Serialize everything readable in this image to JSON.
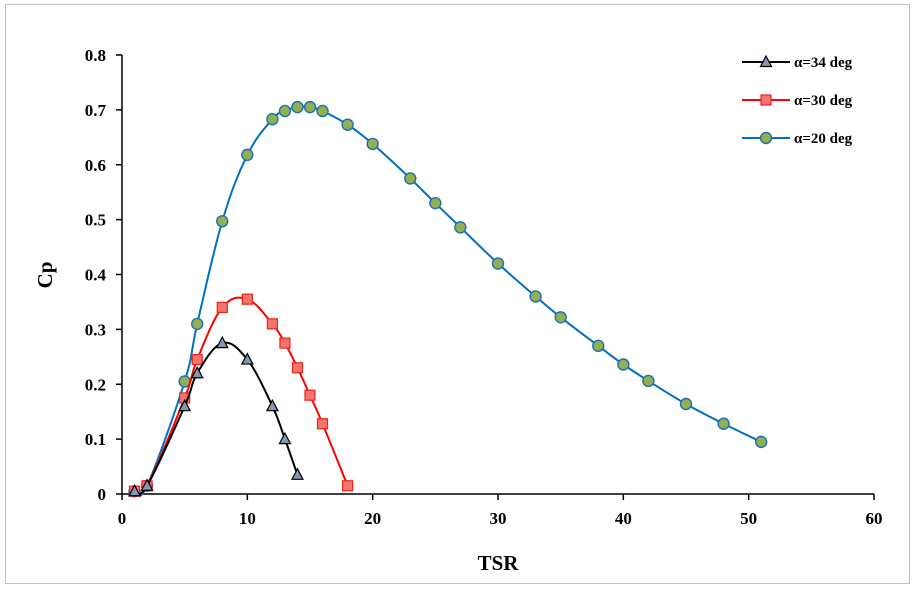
{
  "chart_data": {
    "type": "line",
    "title": "",
    "xlabel": "TSR",
    "ylabel": "Cp",
    "xlim": [
      0,
      60
    ],
    "ylim": [
      0,
      0.8
    ],
    "xticks": [
      "0",
      "10",
      "20",
      "30",
      "40",
      "50",
      "60"
    ],
    "yticks": [
      "0",
      "0.1",
      "0.2",
      "0.3",
      "0.4",
      "0.5",
      "0.6",
      "0.7",
      "0.8"
    ],
    "grid": false,
    "legend_position": "top-right",
    "series": [
      {
        "name": "α=34 deg",
        "color": "#000000",
        "marker": "triangle",
        "marker_fill": "#8497b0",
        "x": [
          1,
          2,
          5,
          6,
          8,
          10,
          12,
          13,
          14
        ],
        "y": [
          0.005,
          0.015,
          0.16,
          0.22,
          0.275,
          0.245,
          0.16,
          0.1,
          0.035
        ]
      },
      {
        "name": "α=30 deg",
        "color": "#ff0000",
        "marker": "square",
        "marker_fill": "#f4756f",
        "x": [
          1,
          2,
          5,
          6,
          8,
          10,
          12,
          13,
          14,
          15,
          16,
          18
        ],
        "y": [
          0.005,
          0.015,
          0.175,
          0.245,
          0.34,
          0.355,
          0.31,
          0.275,
          0.23,
          0.18,
          0.128,
          0.015
        ]
      },
      {
        "name": "α=20 deg",
        "color": "#0070c0",
        "marker": "circle",
        "marker_fill": "#92b050",
        "x": [
          1,
          2,
          5,
          6,
          8,
          10,
          12,
          13,
          14,
          15,
          16,
          18,
          20,
          23,
          25,
          27,
          30,
          33,
          35,
          38,
          40,
          42,
          45,
          48,
          51
        ],
        "y": [
          0.005,
          0.015,
          0.205,
          0.31,
          0.497,
          0.618,
          0.683,
          0.698,
          0.705,
          0.705,
          0.698,
          0.673,
          0.638,
          0.575,
          0.53,
          0.486,
          0.42,
          0.36,
          0.322,
          0.27,
          0.236,
          0.206,
          0.164,
          0.128,
          0.095
        ]
      }
    ]
  }
}
